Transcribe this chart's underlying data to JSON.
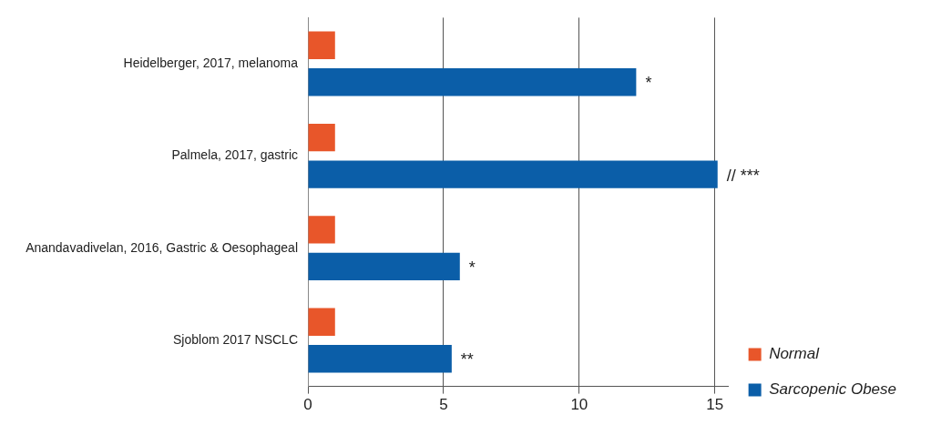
{
  "chart_data": {
    "type": "bar",
    "orientation": "horizontal",
    "categories": [
      "Heidelberger, 2017, melanoma",
      "Palmela, 2017, gastric",
      "Anandavadivelan, 2016, Gastric & Oesophageal",
      "Sjoblom 2017 NSCLC"
    ],
    "series": [
      {
        "name": "Normal",
        "color": "#e8562a",
        "values": [
          1,
          1,
          1,
          1
        ]
      },
      {
        "name": "Sarcopenic Obese",
        "color": "#0b5ea8",
        "values": [
          12.1,
          15.1,
          5.6,
          5.3
        ]
      }
    ],
    "xlim": [
      0,
      15.5
    ],
    "xticks": [
      0,
      5,
      10,
      15
    ],
    "grid": "x",
    "legend": "bottom right",
    "annotations": [
      "*",
      "// ***",
      "*",
      "**"
    ]
  }
}
